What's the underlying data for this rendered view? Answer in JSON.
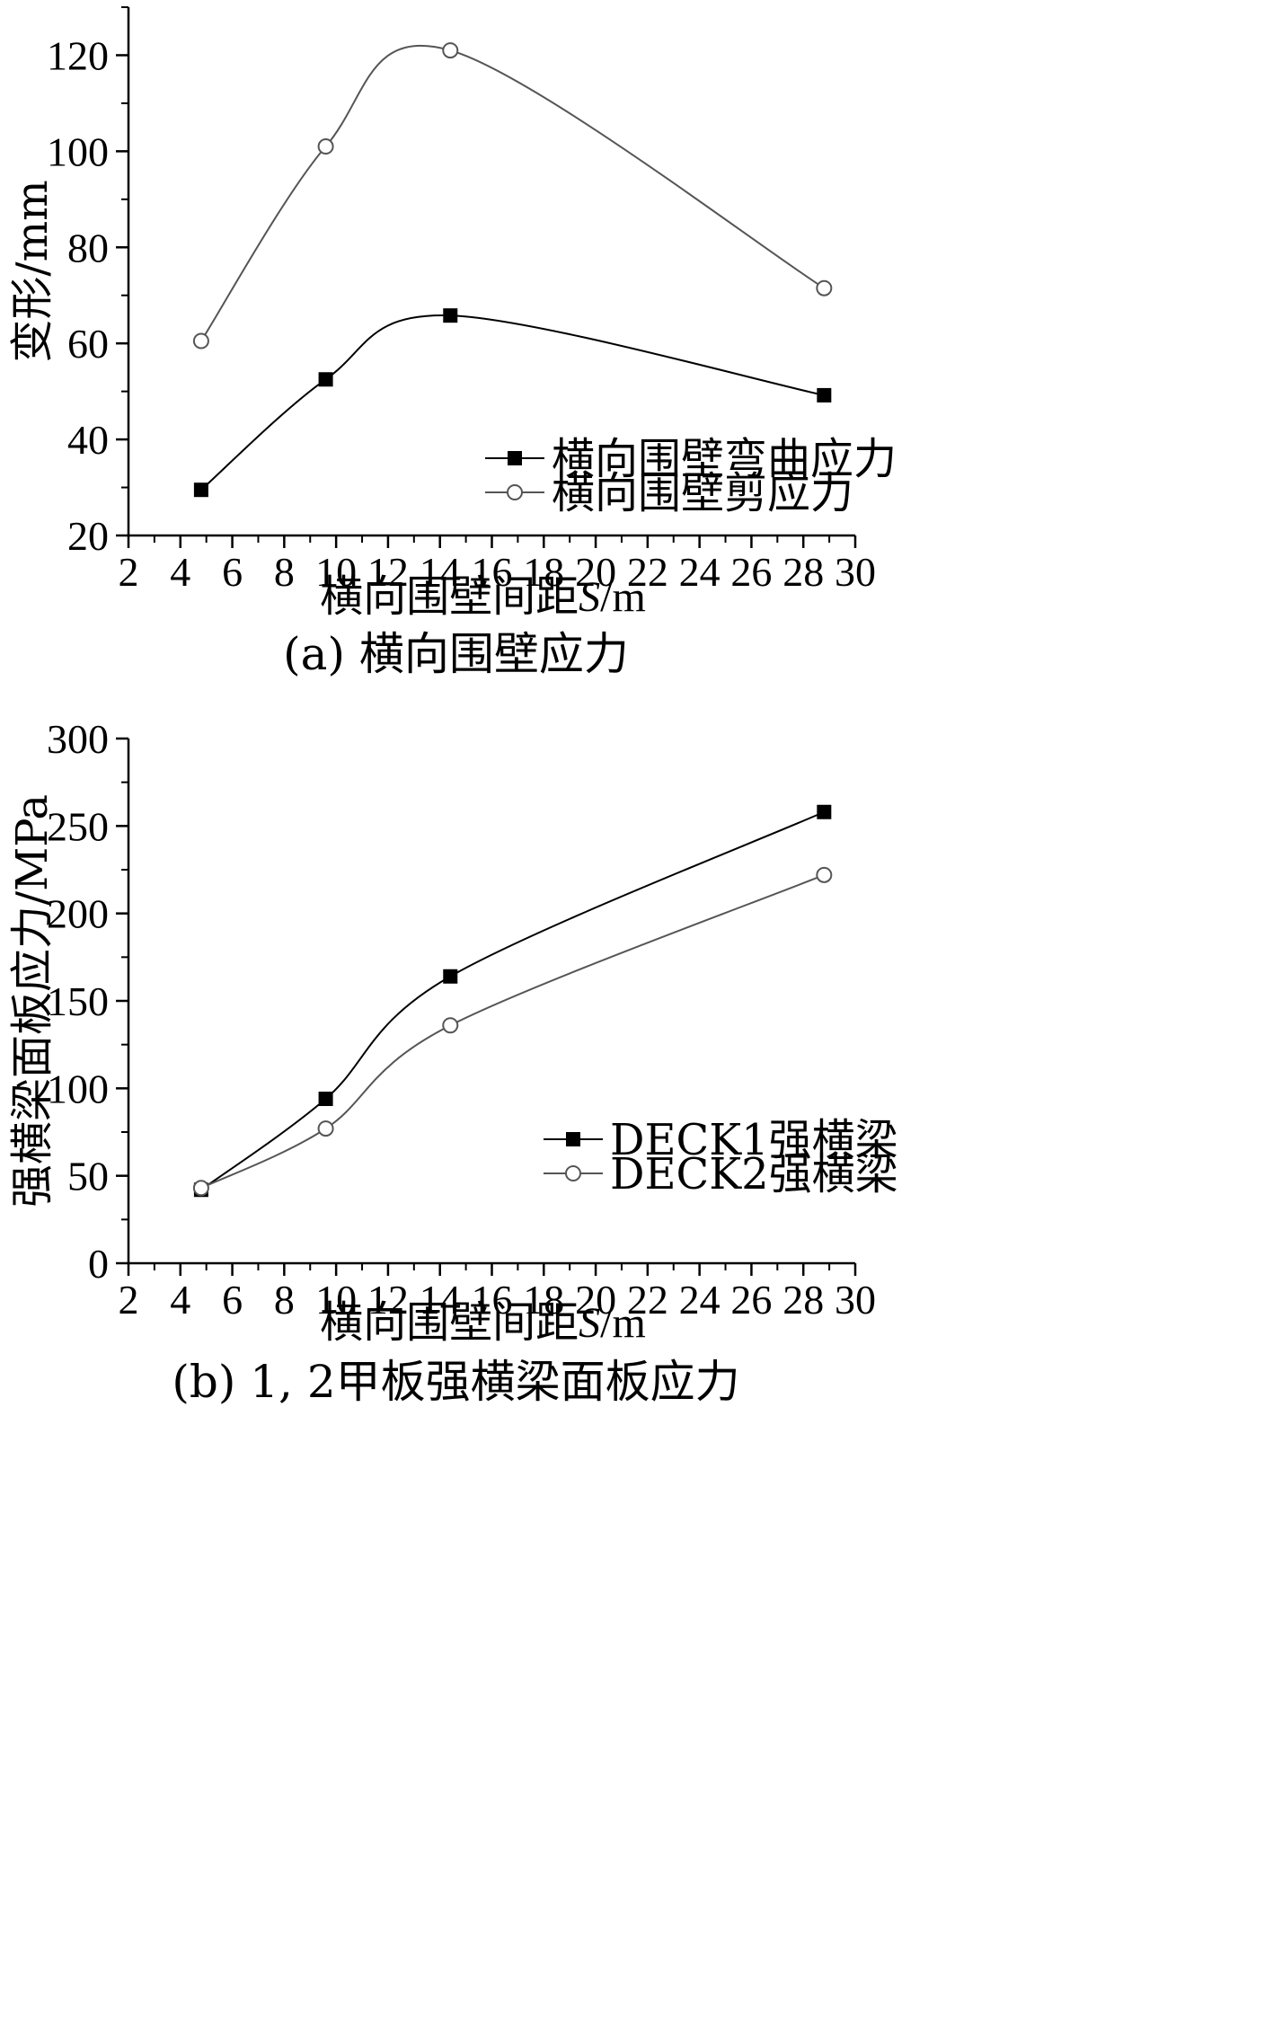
{
  "chart_data": [
    {
      "type": "line",
      "panel": "a",
      "caption": "(a) 横向围壁应力",
      "xlabel_prefix": "横向围壁间距",
      "xlabel_var": "S",
      "xlabel_unit": "/m",
      "ylabel": "变形/mm",
      "xlim": [
        2,
        30
      ],
      "ylim": [
        20,
        130
      ],
      "xticks": [
        2,
        4,
        6,
        8,
        10,
        12,
        14,
        16,
        18,
        20,
        22,
        24,
        26,
        28,
        30
      ],
      "yticks": [
        20,
        40,
        60,
        80,
        100,
        120
      ],
      "legend_position": "bottom-right",
      "grid": false,
      "series": [
        {
          "name": "横向围壁弯曲应力",
          "marker": "filled-square",
          "color": "#000000",
          "x": [
            4.8,
            9.6,
            14.4,
            28.8
          ],
          "y": [
            29.5,
            52.5,
            65.8,
            49.2
          ]
        },
        {
          "name": "横向围壁剪应力",
          "marker": "open-circle",
          "color": "#555555",
          "x": [
            4.8,
            9.6,
            14.4,
            28.8
          ],
          "y": [
            60.5,
            101,
            121,
            71.5
          ]
        }
      ]
    },
    {
      "type": "line",
      "panel": "b",
      "caption": "(b) 1, 2甲板强横梁面板应力",
      "xlabel_prefix": "横向围壁间距",
      "xlabel_var": "S",
      "xlabel_unit": "/m",
      "ylabel": "强横梁面板应力/MPa",
      "xlim": [
        2,
        30
      ],
      "ylim": [
        0,
        300
      ],
      "xticks": [
        2,
        4,
        6,
        8,
        10,
        12,
        14,
        16,
        18,
        20,
        22,
        24,
        26,
        28,
        30
      ],
      "yticks": [
        0,
        50,
        100,
        150,
        200,
        250,
        300
      ],
      "legend_position": "bottom-right",
      "grid": false,
      "series": [
        {
          "name": "DECK1强横梁",
          "marker": "filled-square",
          "color": "#000000",
          "x": [
            4.8,
            9.6,
            14.4,
            28.8
          ],
          "y": [
            42,
            94,
            164,
            258
          ]
        },
        {
          "name": "DECK2强横梁",
          "marker": "open-circle",
          "color": "#555555",
          "x": [
            4.8,
            9.6,
            14.4,
            28.8
          ],
          "y": [
            43,
            77,
            136,
            222
          ]
        }
      ]
    }
  ]
}
